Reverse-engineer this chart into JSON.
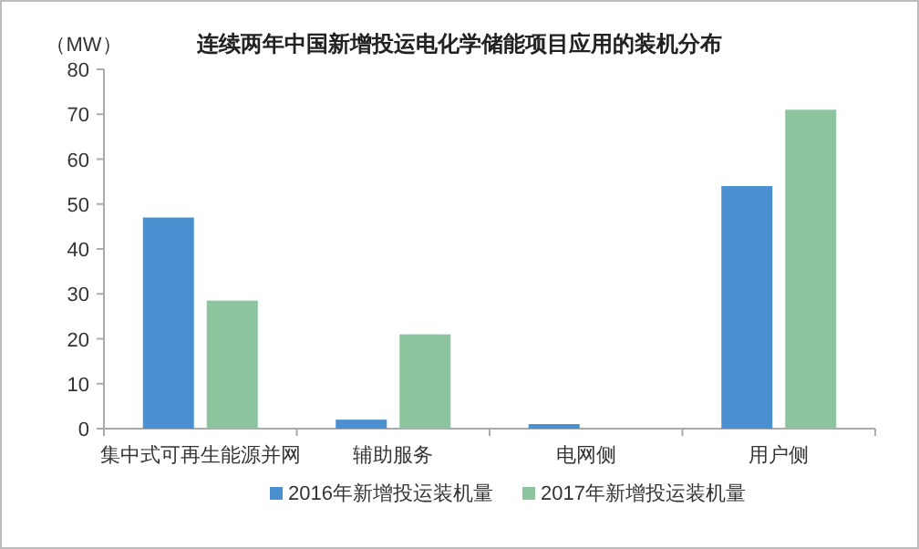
{
  "chart_data": {
    "type": "bar",
    "title": "连续两年中国新增投运电化学储能项目应用的装机分布",
    "ylabel": "（MW）",
    "categories": [
      "集中式可再生能源并网",
      "辅助服务",
      "电网侧",
      "用户侧"
    ],
    "series": [
      {
        "name": "2016年新增投运装机量",
        "color": "#4a90d0",
        "values": [
          47,
          2,
          1,
          54
        ]
      },
      {
        "name": "2017年新增投运装机量",
        "color": "#8cc49e",
        "values": [
          28.5,
          21,
          0,
          71
        ]
      }
    ],
    "ylim": [
      0,
      80
    ],
    "yticks": [
      0,
      10,
      20,
      30,
      40,
      50,
      60,
      70,
      80
    ],
    "grid": false,
    "legend": "bottom"
  }
}
